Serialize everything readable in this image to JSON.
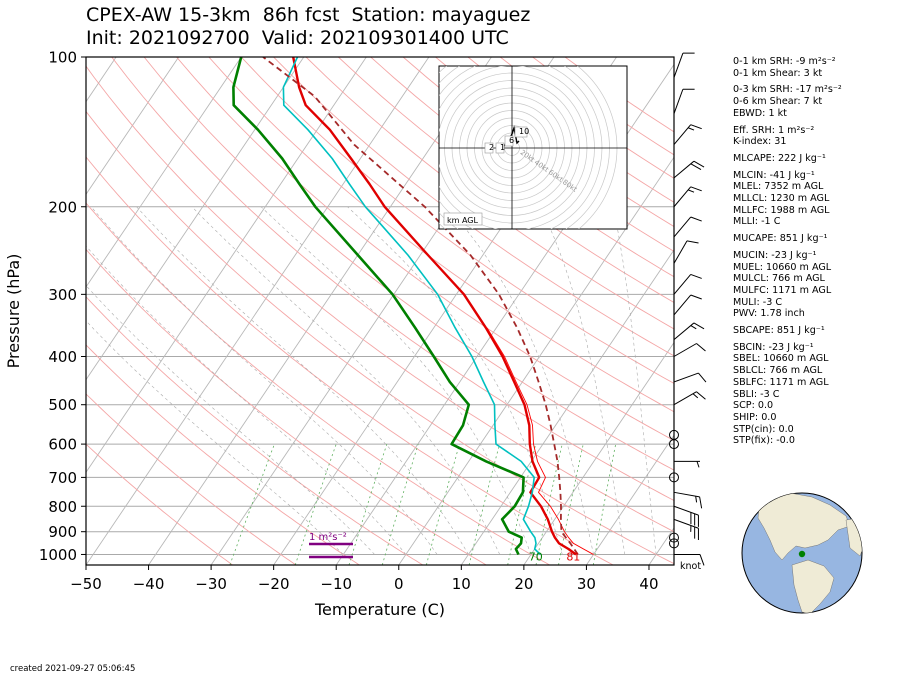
{
  "header": {
    "title_line1": "CPEX-AW 15-3km  86h fcst  Station: mayaguez",
    "title_line2": "Init: 2021092700  Valid: 202109301400 UTC"
  },
  "chart_data": {
    "type": "line",
    "subtype": "skew-t log-p",
    "xlabel": "Temperature (C)",
    "ylabel": "Pressure (hPa)",
    "xlim": [
      -50,
      44
    ],
    "ylim": [
      1050,
      100
    ],
    "x_ticks": [
      "−50",
      "−40",
      "−30",
      "−20",
      "−10",
      "0",
      "10",
      "20",
      "30",
      "40"
    ],
    "x_tick_values": [
      -50,
      -40,
      -30,
      -20,
      -10,
      0,
      10,
      20,
      30,
      40
    ],
    "y_ticks": [
      "100",
      "200",
      "300",
      "400",
      "500",
      "600",
      "700",
      "800",
      "900",
      "1000"
    ],
    "y_tick_values": [
      100,
      200,
      300,
      400,
      500,
      600,
      700,
      800,
      900,
      1000
    ],
    "colors": {
      "temperature": "#e00000",
      "dewpoint": "#008000",
      "wetbulb": "#00c0c0",
      "parcel": "#a52a2a",
      "virtual_temp": "#ff0000",
      "isobar": "#aaaaaa",
      "dry_adiabat": "#f4a6a6",
      "moist_adiabat": "#aaaaaa",
      "mixing_ratio": "#60b060",
      "srh_bar": "#800080"
    },
    "series": [
      {
        "key": "temperature",
        "points": [
          [
            1000,
            27.2
          ],
          [
            975,
            25.4
          ],
          [
            950,
            23.3
          ],
          [
            925,
            22.0
          ],
          [
            900,
            20.9
          ],
          [
            850,
            18.9
          ],
          [
            800,
            16.4
          ],
          [
            750,
            13.2
          ],
          [
            700,
            13.0
          ],
          [
            650,
            10.2
          ],
          [
            600,
            7.9
          ],
          [
            550,
            5.8
          ],
          [
            500,
            2.8
          ],
          [
            450,
            -1.3
          ],
          [
            400,
            -5.9
          ],
          [
            350,
            -11.7
          ],
          [
            300,
            -18.8
          ],
          [
            250,
            -28.8
          ],
          [
            200,
            -40.9
          ],
          [
            180,
            -45.8
          ],
          [
            160,
            -51.5
          ],
          [
            140,
            -58.0
          ],
          [
            125,
            -64.5
          ],
          [
            115,
            -67.5
          ],
          [
            100,
            -71.7
          ]
        ]
      },
      {
        "key": "virtual_temp",
        "points": [
          [
            1000,
            30.0
          ],
          [
            975,
            27.8
          ],
          [
            950,
            25.6
          ],
          [
            925,
            24.2
          ],
          [
            900,
            22.9
          ],
          [
            850,
            20.6
          ],
          [
            800,
            17.9
          ],
          [
            750,
            14.5
          ],
          [
            700,
            14.0
          ],
          [
            650,
            11.0
          ],
          [
            600,
            8.5
          ],
          [
            550,
            6.3
          ],
          [
            500,
            3.2
          ],
          [
            450,
            -1.0
          ],
          [
            400,
            -5.6
          ],
          [
            350,
            -11.5
          ]
        ]
      },
      {
        "key": "dewpoint",
        "points": [
          [
            1000,
            18.0
          ],
          [
            975,
            17.0
          ],
          [
            950,
            17.2
          ],
          [
            925,
            16.7
          ],
          [
            900,
            14.0
          ],
          [
            850,
            11.6
          ],
          [
            800,
            12.2
          ],
          [
            750,
            12.0
          ],
          [
            700,
            10.5
          ],
          [
            650,
            2.8
          ],
          [
            600,
            -4.6
          ],
          [
            550,
            -4.8
          ],
          [
            500,
            -6.1
          ],
          [
            450,
            -11.6
          ],
          [
            400,
            -16.9
          ],
          [
            350,
            -23.0
          ],
          [
            300,
            -30.2
          ],
          [
            250,
            -40.0
          ],
          [
            200,
            -52.0
          ],
          [
            180,
            -57.0
          ],
          [
            160,
            -62.5
          ],
          [
            140,
            -69.5
          ],
          [
            125,
            -76.0
          ],
          [
            115,
            -78.0
          ],
          [
            100,
            -80.0
          ]
        ]
      },
      {
        "key": "wetbulb",
        "points": [
          [
            1000,
            21.5
          ],
          [
            975,
            20.0
          ],
          [
            950,
            19.6
          ],
          [
            925,
            18.8
          ],
          [
            900,
            17.5
          ],
          [
            850,
            15.0
          ],
          [
            800,
            14.4
          ],
          [
            750,
            13.5
          ],
          [
            700,
            12.2
          ],
          [
            650,
            8.4
          ],
          [
            600,
            2.5
          ],
          [
            550,
            0.3
          ],
          [
            500,
            -2.0
          ],
          [
            450,
            -6.2
          ],
          [
            400,
            -10.8
          ],
          [
            350,
            -16.6
          ],
          [
            300,
            -23.0
          ],
          [
            250,
            -32.0
          ],
          [
            200,
            -44.0
          ],
          [
            180,
            -49.0
          ],
          [
            160,
            -54.5
          ],
          [
            140,
            -61.5
          ],
          [
            125,
            -68.0
          ],
          [
            115,
            -70.0
          ],
          [
            100,
            -71.0
          ]
        ]
      },
      {
        "key": "parcel",
        "points": [
          [
            1000,
            27.5
          ],
          [
            950,
            25.1
          ],
          [
            900,
            22.4
          ],
          [
            850,
            21.0
          ],
          [
            800,
            19.6
          ],
          [
            750,
            18.0
          ],
          [
            700,
            16.2
          ],
          [
            650,
            14.2
          ],
          [
            600,
            11.8
          ],
          [
            550,
            9.2
          ],
          [
            500,
            6.2
          ],
          [
            450,
            2.6
          ],
          [
            400,
            -1.5
          ],
          [
            350,
            -6.7
          ],
          [
            300,
            -13.2
          ],
          [
            250,
            -22.0
          ],
          [
            200,
            -34.5
          ],
          [
            150,
            -52.5
          ],
          [
            120,
            -64.0
          ],
          [
            100,
            -76.5
          ]
        ]
      }
    ],
    "surface_labels": [
      {
        "text": "81",
        "pressure": 1010,
        "temperature": 27.0,
        "color": "#e00000"
      },
      {
        "text": "70",
        "pressure": 1010,
        "temperature": 21.0,
        "color": "#008000"
      }
    ],
    "srh_bar": {
      "label": "1 m²s⁻²",
      "value": 1
    },
    "wind_unit_label": "knot",
    "hodograph": {
      "rings_knots": [
        20,
        40,
        60,
        80
      ],
      "ring_labels": [
        "20kt",
        "40kt",
        "60kt",
        "80kt"
      ],
      "height_labels": [
        "2",
        "1",
        "6",
        "10"
      ],
      "corner_label": "km AGL"
    },
    "wind_barbs": [
      {
        "pressure": 1000,
        "speed_kt": 10,
        "direction_deg": 90
      },
      {
        "pressure": 950,
        "speed_kt": 0,
        "direction_deg": 0
      },
      {
        "pressure": 925,
        "speed_kt": 0,
        "direction_deg": 0
      },
      {
        "pressure": 850,
        "speed_kt": 25,
        "direction_deg": 110
      },
      {
        "pressure": 800,
        "speed_kt": 30,
        "direction_deg": 110
      },
      {
        "pressure": 750,
        "speed_kt": 15,
        "direction_deg": 100
      },
      {
        "pressure": 700,
        "speed_kt": 0,
        "direction_deg": 0
      },
      {
        "pressure": 650,
        "speed_kt": 5,
        "direction_deg": 90
      },
      {
        "pressure": 600,
        "speed_kt": 0,
        "direction_deg": 0
      },
      {
        "pressure": 575,
        "speed_kt": 0,
        "direction_deg": 0
      },
      {
        "pressure": 500,
        "speed_kt": 15,
        "direction_deg": 60
      },
      {
        "pressure": 450,
        "speed_kt": 10,
        "direction_deg": 70
      },
      {
        "pressure": 400,
        "speed_kt": 10,
        "direction_deg": 60
      },
      {
        "pressure": 370,
        "speed_kt": 15,
        "direction_deg": 50
      },
      {
        "pressure": 330,
        "speed_kt": 10,
        "direction_deg": 40
      },
      {
        "pressure": 300,
        "speed_kt": 10,
        "direction_deg": 40
      },
      {
        "pressure": 260,
        "speed_kt": 10,
        "direction_deg": 30
      },
      {
        "pressure": 230,
        "speed_kt": 10,
        "direction_deg": 40
      },
      {
        "pressure": 200,
        "speed_kt": 15,
        "direction_deg": 40
      },
      {
        "pressure": 175,
        "speed_kt": 20,
        "direction_deg": 50
      },
      {
        "pressure": 150,
        "speed_kt": 15,
        "direction_deg": 40
      },
      {
        "pressure": 130,
        "speed_kt": 10,
        "direction_deg": 20
      },
      {
        "pressure": 110,
        "speed_kt": 10,
        "direction_deg": 20
      }
    ]
  },
  "parameters": [
    "0-1 km SRH: -9 m²s⁻²",
    "0-1 km Shear: 3 kt",
    "0-3 km SRH: -17 m²s⁻²",
    "0-6 km Shear: 7 kt",
    "EBWD: 1 kt",
    "Eff. SRH: 1 m²s⁻²",
    "K-index: 31",
    "MLCAPE: 222 J kg⁻¹",
    "MLCIN: -41 J kg⁻¹",
    "MLEL: 7352 m AGL",
    "MLLCL: 1230 m AGL",
    "MLLFC: 1988 m AGL",
    "MLLI: -1 C",
    "MUCAPE: 851 J kg⁻¹",
    "MUCIN: -23 J kg⁻¹",
    "MUEL: 10660 m AGL",
    "MULCL: 766 m AGL",
    "MULFC: 1171 m AGL",
    "MULI: -3 C",
    "PWV: 1.78 inch",
    "SBCAPE: 851 J kg⁻¹",
    "SBCIN: -23 J kg⁻¹",
    "SBEL: 10660 m AGL",
    "SBLCL: 766 m AGL",
    "SBLFC: 1171 m AGL",
    "SBLI: -3 C",
    "SCP: 0.0",
    "SHIP: 0.0",
    "STP(cin): 0.0",
    "STP(fix): -0.0"
  ],
  "globe": {
    "land_color": "#efebd6",
    "ocean_color": "#97b6e1",
    "marker_color": "#008000"
  },
  "footer": {
    "created": "created 2021-09-27 05:06:45"
  }
}
